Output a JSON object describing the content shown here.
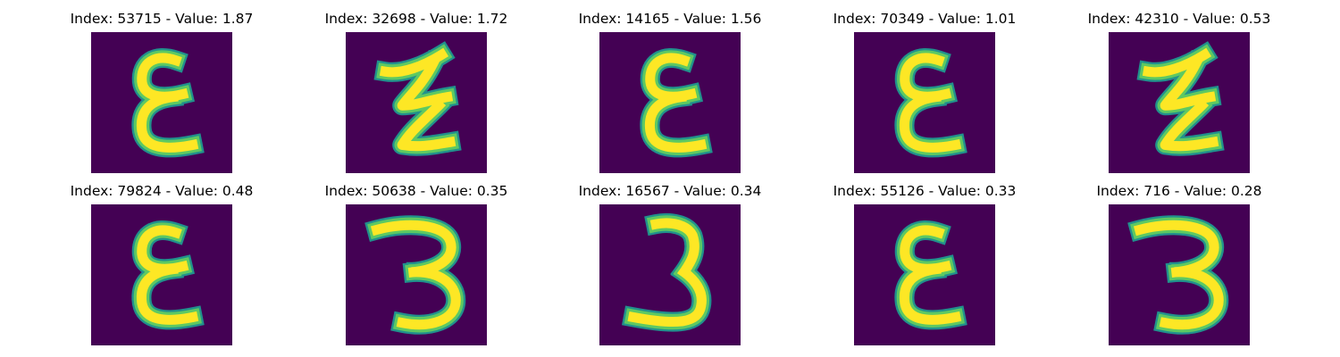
{
  "colors": {
    "background": "#440154",
    "edge": "#21918c",
    "mid": "#5ec962",
    "stroke": "#fde725"
  },
  "panels": [
    {
      "title": "Index: 53715 - Value: 1.87",
      "glyph": "epsilon"
    },
    {
      "title": "Index: 32698 - Value: 1.72",
      "glyph": "zigzag"
    },
    {
      "title": "Index: 14165 - Value: 1.56",
      "glyph": "epsilon"
    },
    {
      "title": "Index: 70349 - Value: 1.01",
      "glyph": "epsilon"
    },
    {
      "title": "Index: 42310 - Value: 0.53",
      "glyph": "zigzag"
    },
    {
      "title": "Index: 79824 - Value: 0.48",
      "glyph": "epsilon"
    },
    {
      "title": "Index: 50638 - Value: 0.35",
      "glyph": "three"
    },
    {
      "title": "Index: 16567 - Value: 0.34",
      "glyph": "three-j"
    },
    {
      "title": "Index: 55126 - Value: 0.33",
      "glyph": "epsilon"
    },
    {
      "title": "Index: 716 - Value: 0.28",
      "glyph": "three"
    }
  ]
}
